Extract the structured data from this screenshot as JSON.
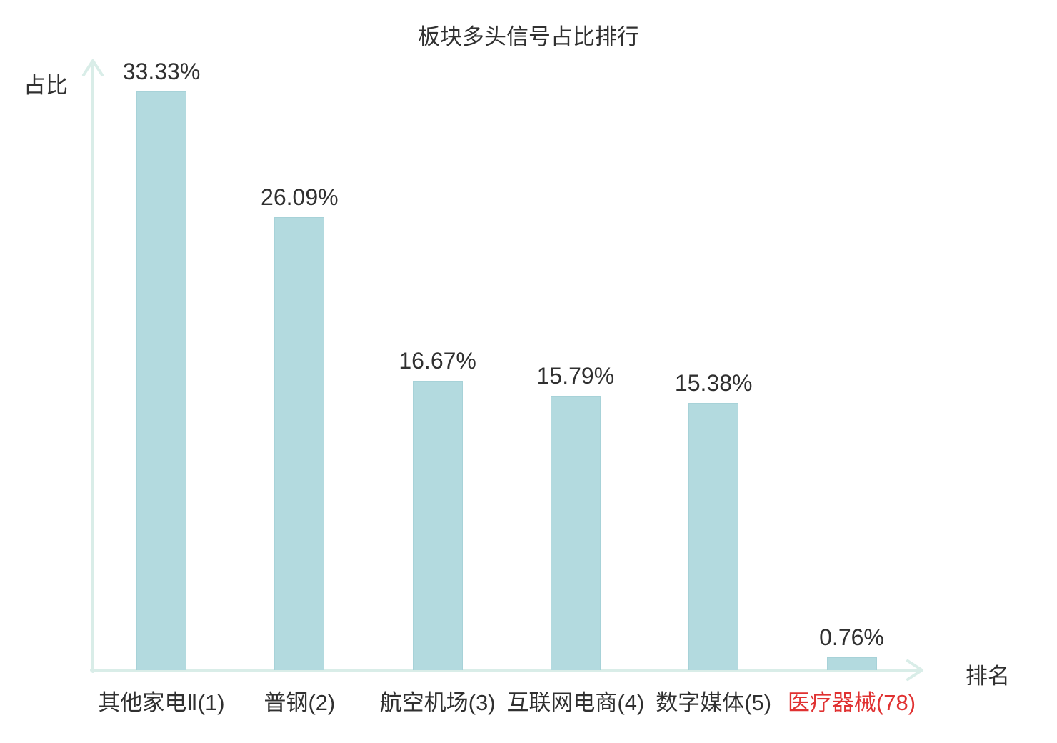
{
  "chart_data": {
    "type": "bar",
    "title": "板块多头信号占比排行",
    "xlabel": "排名",
    "ylabel": "占比",
    "categories": [
      "其他家电Ⅱ(1)",
      "普钢(2)",
      "航空机场(3)",
      "互联网电商(4)",
      "数字媒体(5)",
      "医疗器械(78)"
    ],
    "values": [
      33.33,
      26.09,
      16.67,
      15.79,
      15.38,
      0.76
    ],
    "value_labels": [
      "33.33%",
      "26.09%",
      "16.67%",
      "15.79%",
      "15.38%",
      "0.76%"
    ],
    "ylim": [
      0,
      35
    ],
    "grid": false,
    "legend_position": "none",
    "highlight": {
      "index": 5,
      "color": "#e03131"
    },
    "colors": {
      "bar_fill": "#b3dadf",
      "bar_border": "#a7d2d8",
      "axis": "#d9ede8",
      "text": "#303030"
    }
  }
}
